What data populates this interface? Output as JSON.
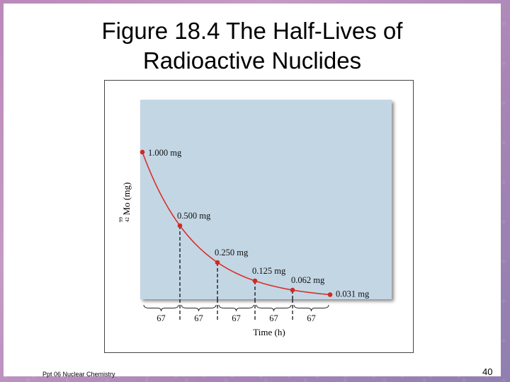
{
  "slide": {
    "title_line1": "Figure 18.4  The Half-Lives of",
    "title_line2": "Radioactive Nuclides",
    "footer_left": "Ppt 06 Nuclear Chemistry",
    "page_number": "40"
  },
  "colors": {
    "plot_background": "#c3d6e4",
    "curve": "#d9302b",
    "point": "#d02a22",
    "marker_line": "#000000"
  },
  "chart_data": {
    "type": "line",
    "title": "",
    "xlabel": "Time (h)",
    "ylabel": "Mo (mg)",
    "ylabel_mass_number": "99",
    "ylabel_atomic_number": "42",
    "x": [
      0,
      67,
      134,
      201,
      268,
      335
    ],
    "y": [
      1.0,
      0.5,
      0.25,
      0.125,
      0.062,
      0.031
    ],
    "point_labels": [
      "1.000 mg",
      "0.500 mg",
      "0.250 mg",
      "0.125 mg",
      "0.062 mg",
      "0.031 mg"
    ],
    "interval_labels": [
      "67",
      "67",
      "67",
      "67",
      "67"
    ],
    "xlim": [
      0,
      335
    ],
    "ylim": [
      0,
      1.0
    ],
    "grid": false,
    "legend": "none"
  }
}
